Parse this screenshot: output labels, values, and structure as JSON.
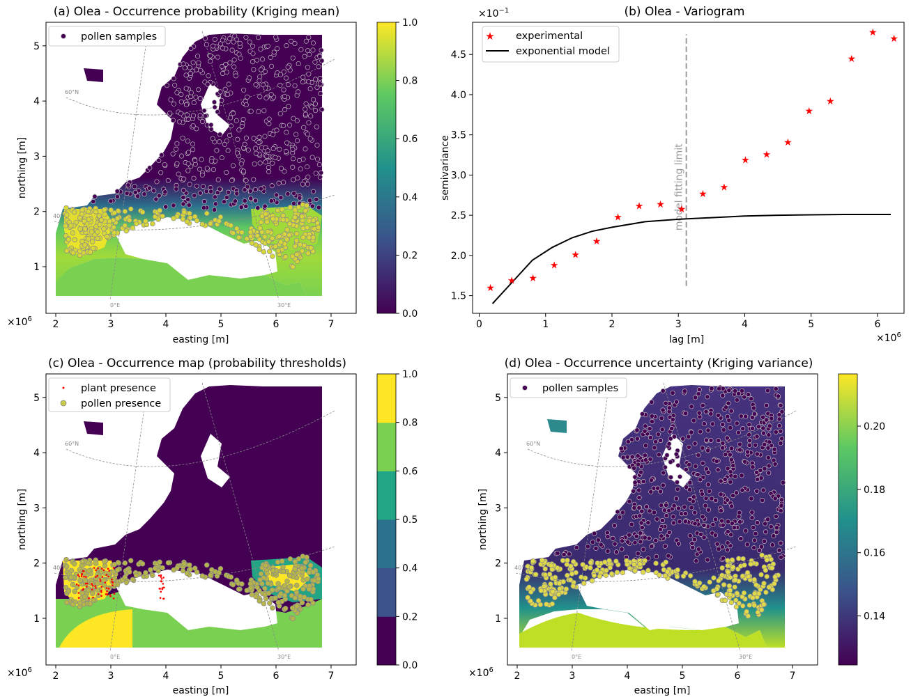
{
  "panels": {
    "a": {
      "title": "(a) Olea - Occurrence probability (Kriging mean)",
      "xlabel": "easting [m]",
      "ylabel": "northing [m]",
      "x_ticks": [
        "2",
        "3",
        "4",
        "5",
        "6",
        "7"
      ],
      "y_ticks": [
        "1",
        "2",
        "3",
        "4",
        "5"
      ],
      "offset": "×10^6",
      "legend": [
        "pollen samples"
      ],
      "graticule": [
        "60°N",
        "40°N",
        "0°E",
        "30°E"
      ],
      "colorbar_ticks": [
        "0.0",
        "0.2",
        "0.4",
        "0.6",
        "0.8",
        "1.0"
      ]
    },
    "c": {
      "title": "(c) Olea - Occurrence map (probability thresholds)",
      "xlabel": "easting [m]",
      "ylabel": "northing [m]",
      "x_ticks": [
        "2",
        "3",
        "4",
        "5",
        "6",
        "7"
      ],
      "y_ticks": [
        "1",
        "2",
        "3",
        "4",
        "5"
      ],
      "offset": "×10^6",
      "legend": [
        "plant presence",
        "pollen presence"
      ],
      "graticule": [
        "60°N",
        "40°N",
        "0°E",
        "30°E"
      ],
      "colorbar_ticks": [
        "0.0",
        "0.2",
        "0.4",
        "0.5",
        "0.6",
        "0.8",
        "1.0"
      ]
    },
    "d": {
      "title": "(d) Olea - Occurrence uncertainty (Kriging variance)",
      "xlabel": "easting [m]",
      "ylabel": "northing [m]",
      "x_ticks": [
        "2",
        "3",
        "4",
        "5",
        "6",
        "7"
      ],
      "y_ticks": [
        "1",
        "2",
        "3",
        "4",
        "5"
      ],
      "offset": "×10^6",
      "legend": [
        "pollen samples"
      ],
      "graticule": [
        "60°N",
        "40°N",
        "0°E",
        "30°E"
      ],
      "colorbar_ticks": [
        "0.14",
        "0.16",
        "0.18",
        "0.20"
      ]
    }
  },
  "colors": {
    "viridis": [
      "#440154",
      "#3b528b",
      "#21918c",
      "#5ec962",
      "#fde725"
    ],
    "thresholds": [
      "#440154",
      "#3b528b",
      "#2c728e",
      "#21a585",
      "#7ad151",
      "#fde725"
    ],
    "star": "#ff0000",
    "model_line": "#000000",
    "limit_line": "#999999"
  },
  "chart_data": [
    {
      "type": "scatter",
      "title": "(b) Olea - Variogram",
      "xlabel": "lag [m]",
      "ylabel": "semivariance",
      "x_offset": "×10^6",
      "y_offset": "×10^-1",
      "xlim": [
        -0.1,
        6.4
      ],
      "ylim": [
        1.28,
        4.9
      ],
      "x_ticks": [
        "0",
        "1",
        "2",
        "3",
        "4",
        "5",
        "6"
      ],
      "y_ticks": [
        "1.5",
        "2.0",
        "2.5",
        "3.0",
        "3.5",
        "4.0",
        "4.5"
      ],
      "legend_position": "upper-left",
      "annotation": "model fitting limit",
      "limit_x": 3.12,
      "limit_y": [
        1.62,
        4.75
      ],
      "series": [
        {
          "name": "experimental",
          "marker": "star",
          "x": [
            0.17,
            0.49,
            0.81,
            1.13,
            1.45,
            1.77,
            2.09,
            2.41,
            2.73,
            3.05,
            3.37,
            3.69,
            4.01,
            4.33,
            4.65,
            4.97,
            5.29,
            5.61,
            5.93,
            6.25
          ],
          "y": [
            1.6,
            1.69,
            1.72,
            1.88,
            2.01,
            2.18,
            2.48,
            2.62,
            2.64,
            2.58,
            2.77,
            2.85,
            3.19,
            3.26,
            3.41,
            3.8,
            3.92,
            4.45,
            4.78,
            4.7
          ]
        },
        {
          "name": "exponential model",
          "marker": "line",
          "x": [
            0.2,
            0.5,
            0.8,
            1.1,
            1.4,
            1.7,
            2.0,
            2.5,
            3.0,
            3.5,
            4.0,
            4.5,
            5.0,
            5.5,
            6.2
          ],
          "y": [
            1.4,
            1.67,
            1.94,
            2.1,
            2.22,
            2.3,
            2.35,
            2.42,
            2.45,
            2.47,
            2.49,
            2.5,
            2.505,
            2.51,
            2.51
          ]
        }
      ]
    }
  ]
}
